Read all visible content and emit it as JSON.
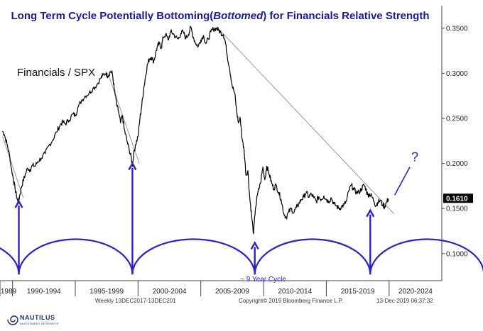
{
  "chart_data": {
    "type": "line",
    "title_prefix": "Long Term Cycle Potentially Bottoming(",
    "title_emph": "Bottomed",
    "title_suffix": ") for Financials Relative Strength",
    "series_label": "Financials / SPX",
    "x_labels": [
      "1989",
      "1990-1994",
      "1995-1999",
      "2000-2004",
      "2005-2009",
      "2010-2014",
      "2015-2019",
      "2020-2024"
    ],
    "y_ticks": [
      "0.1000",
      "0.1500",
      "0.2000",
      "0.2500",
      "0.3000",
      "0.3500"
    ],
    "y_tick_values": [
      0.1,
      0.15,
      0.2,
      0.25,
      0.3,
      0.35
    ],
    "ylim": [
      0.07,
      0.375
    ],
    "xlim": [
      1989.0,
      2024.2
    ],
    "last_value_label": "0.1610",
    "last_value": 0.161,
    "series": [
      {
        "name": "Financials / SPX",
        "points": [
          [
            1989.2,
            0.236
          ],
          [
            1989.35,
            0.232
          ],
          [
            1989.55,
            0.222
          ],
          [
            1989.75,
            0.21
          ],
          [
            1989.9,
            0.195
          ],
          [
            1990.05,
            0.184
          ],
          [
            1990.2,
            0.172
          ],
          [
            1990.35,
            0.162
          ],
          [
            1990.45,
            0.156
          ],
          [
            1990.55,
            0.163
          ],
          [
            1990.7,
            0.173
          ],
          [
            1990.85,
            0.181
          ],
          [
            1991.0,
            0.187
          ],
          [
            1991.2,
            0.195
          ],
          [
            1991.4,
            0.193
          ],
          [
            1991.6,
            0.198
          ],
          [
            1991.8,
            0.197
          ],
          [
            1992.0,
            0.202
          ],
          [
            1992.3,
            0.206
          ],
          [
            1992.6,
            0.211
          ],
          [
            1992.9,
            0.22
          ],
          [
            1993.2,
            0.226
          ],
          [
            1993.5,
            0.235
          ],
          [
            1993.8,
            0.243
          ],
          [
            1994.0,
            0.246
          ],
          [
            1994.2,
            0.244
          ],
          [
            1994.5,
            0.248
          ],
          [
            1994.8,
            0.255
          ],
          [
            1995.0,
            0.253
          ],
          [
            1995.2,
            0.262
          ],
          [
            1995.5,
            0.27
          ],
          [
            1995.8,
            0.275
          ],
          [
            1996.1,
            0.278
          ],
          [
            1996.4,
            0.283
          ],
          [
            1996.7,
            0.287
          ],
          [
            1997.0,
            0.294
          ],
          [
            1997.2,
            0.298
          ],
          [
            1997.45,
            0.3
          ],
          [
            1997.6,
            0.297
          ],
          [
            1997.8,
            0.302
          ],
          [
            1997.95,
            0.3
          ],
          [
            1998.1,
            0.283
          ],
          [
            1998.3,
            0.265
          ],
          [
            1998.45,
            0.257
          ],
          [
            1998.6,
            0.245
          ],
          [
            1998.75,
            0.253
          ],
          [
            1998.9,
            0.238
          ],
          [
            1999.1,
            0.226
          ],
          [
            1999.3,
            0.215
          ],
          [
            1999.45,
            0.207
          ],
          [
            1999.55,
            0.197
          ],
          [
            1999.65,
            0.21
          ],
          [
            1999.8,
            0.221
          ],
          [
            2000.0,
            0.23
          ],
          [
            2000.15,
            0.25
          ],
          [
            2000.3,
            0.265
          ],
          [
            2000.45,
            0.283
          ],
          [
            2000.6,
            0.297
          ],
          [
            2000.75,
            0.31
          ],
          [
            2000.9,
            0.316
          ],
          [
            2001.05,
            0.318
          ],
          [
            2001.25,
            0.313
          ],
          [
            2001.4,
            0.322
          ],
          [
            2001.55,
            0.33
          ],
          [
            2001.7,
            0.333
          ],
          [
            2001.85,
            0.328
          ],
          [
            2002.0,
            0.34
          ],
          [
            2002.2,
            0.343
          ],
          [
            2002.4,
            0.337
          ],
          [
            2002.6,
            0.346
          ],
          [
            2002.8,
            0.344
          ],
          [
            2003.0,
            0.34
          ],
          [
            2003.2,
            0.338
          ],
          [
            2003.4,
            0.344
          ],
          [
            2003.6,
            0.346
          ],
          [
            2003.8,
            0.339
          ],
          [
            2004.0,
            0.343
          ],
          [
            2004.2,
            0.351
          ],
          [
            2004.4,
            0.34
          ],
          [
            2004.6,
            0.333
          ],
          [
            2004.8,
            0.33
          ],
          [
            2005.0,
            0.337
          ],
          [
            2005.2,
            0.342
          ],
          [
            2005.4,
            0.333
          ],
          [
            2005.6,
            0.338
          ],
          [
            2005.8,
            0.346
          ],
          [
            2006.0,
            0.349
          ],
          [
            2006.2,
            0.35
          ],
          [
            2006.4,
            0.348
          ],
          [
            2006.6,
            0.345
          ],
          [
            2006.8,
            0.343
          ],
          [
            2006.95,
            0.335
          ],
          [
            2007.1,
            0.32
          ],
          [
            2007.3,
            0.305
          ],
          [
            2007.5,
            0.286
          ],
          [
            2007.7,
            0.278
          ],
          [
            2007.85,
            0.258
          ],
          [
            2008.0,
            0.245
          ],
          [
            2008.15,
            0.25
          ],
          [
            2008.3,
            0.226
          ],
          [
            2008.45,
            0.215
          ],
          [
            2008.6,
            0.187
          ],
          [
            2008.75,
            0.192
          ],
          [
            2008.9,
            0.162
          ],
          [
            2009.05,
            0.142
          ],
          [
            2009.2,
            0.122
          ],
          [
            2009.35,
            0.15
          ],
          [
            2009.55,
            0.168
          ],
          [
            2009.75,
            0.178
          ],
          [
            2009.95,
            0.196
          ],
          [
            2010.1,
            0.182
          ],
          [
            2010.25,
            0.197
          ],
          [
            2010.45,
            0.188
          ],
          [
            2010.65,
            0.178
          ],
          [
            2010.8,
            0.172
          ],
          [
            2011.0,
            0.176
          ],
          [
            2011.2,
            0.168
          ],
          [
            2011.4,
            0.16
          ],
          [
            2011.6,
            0.145
          ],
          [
            2011.8,
            0.14
          ],
          [
            2012.0,
            0.146
          ],
          [
            2012.2,
            0.15
          ],
          [
            2012.4,
            0.145
          ],
          [
            2012.6,
            0.151
          ],
          [
            2012.8,
            0.155
          ],
          [
            2013.0,
            0.16
          ],
          [
            2013.2,
            0.163
          ],
          [
            2013.4,
            0.168
          ],
          [
            2013.6,
            0.163
          ],
          [
            2013.8,
            0.166
          ],
          [
            2014.0,
            0.162
          ],
          [
            2014.2,
            0.158
          ],
          [
            2014.4,
            0.163
          ],
          [
            2014.6,
            0.16
          ],
          [
            2014.8,
            0.164
          ],
          [
            2015.0,
            0.16
          ],
          [
            2015.2,
            0.158
          ],
          [
            2015.4,
            0.162
          ],
          [
            2015.6,
            0.155
          ],
          [
            2015.8,
            0.153
          ],
          [
            2016.0,
            0.15
          ],
          [
            2016.2,
            0.152
          ],
          [
            2016.4,
            0.154
          ],
          [
            2016.6,
            0.158
          ],
          [
            2016.8,
            0.17
          ],
          [
            2017.0,
            0.176
          ],
          [
            2017.2,
            0.171
          ],
          [
            2017.4,
            0.168
          ],
          [
            2017.6,
            0.168
          ],
          [
            2017.8,
            0.172
          ],
          [
            2018.0,
            0.176
          ],
          [
            2018.15,
            0.172
          ],
          [
            2018.3,
            0.165
          ],
          [
            2018.45,
            0.166
          ],
          [
            2018.6,
            0.164
          ],
          [
            2018.8,
            0.158
          ],
          [
            2018.95,
            0.153
          ],
          [
            2019.1,
            0.157
          ],
          [
            2019.3,
            0.159
          ],
          [
            2019.5,
            0.154
          ],
          [
            2019.65,
            0.152
          ],
          [
            2019.8,
            0.157
          ],
          [
            2019.95,
            0.161
          ]
        ]
      }
    ],
    "trendlines": [
      {
        "from": [
          1989.2,
          0.23
        ],
        "to": [
          1990.85,
          0.162
        ]
      },
      {
        "from": [
          1997.6,
          0.3
        ],
        "to": [
          2000.1,
          0.2
        ]
      },
      {
        "from": [
          2006.3,
          0.351
        ],
        "to": [
          2020.4,
          0.144
        ]
      }
    ],
    "projection": {
      "from": [
        2020.45,
        0.165
      ],
      "to": [
        2021.65,
        0.196
      ]
    },
    "cycle_bottoms": [
      1990.5,
      1999.55,
      2009.3,
      2018.5
    ],
    "cycle_arrow_tops": [
      0.158,
      0.2,
      0.112,
      0.148
    ],
    "cycle_label": "~ 9 Year Cycle",
    "question_mark": "?"
  },
  "footer": {
    "left": "Weekly 13DEC2017-13DEC201",
    "center": "Copyright© 2019 Bloomberg Finance L.P.",
    "right": "13-Dec-2019 06:37:32"
  },
  "logo": {
    "name": "NAUTILUS",
    "tagline": "INVESTMENT RESEARCH"
  },
  "colors": {
    "title": "#1a1a9a",
    "cycle": "#2a22c8",
    "line": "#000000",
    "trend": "#9a9a9a",
    "last_value_bg": "#000000"
  }
}
